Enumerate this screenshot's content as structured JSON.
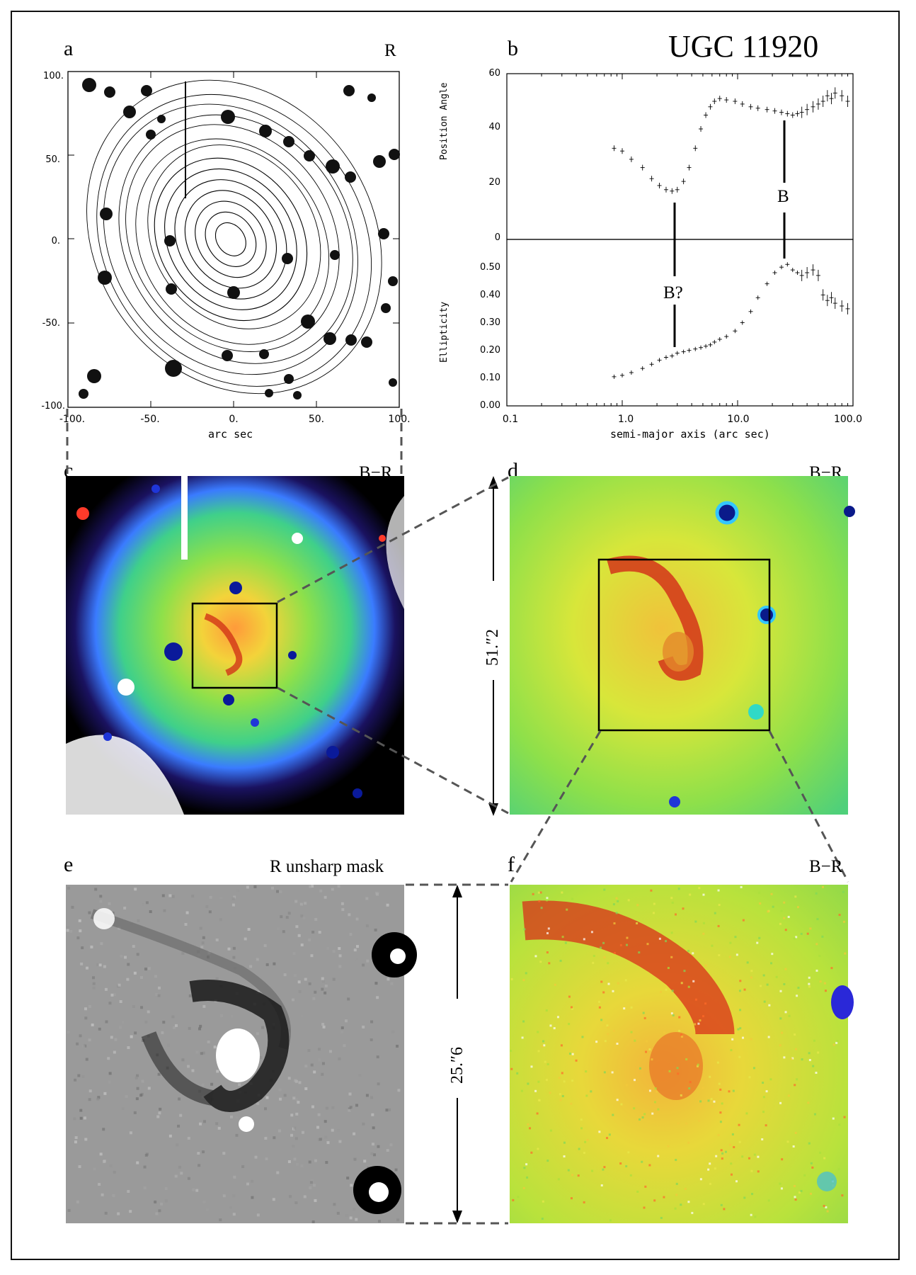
{
  "figure": {
    "title": "UGC 11920",
    "panels": {
      "a": {
        "letter": "a",
        "band": "R",
        "xlabel": "arc sec",
        "xticks": [
          "-100.",
          "-50.",
          "0.",
          "50.",
          "100."
        ],
        "yticks": [
          "100.",
          "50.",
          "0.",
          "-50.",
          "-100."
        ]
      },
      "b": {
        "letter": "b",
        "xlabel": "semi-major axis (arc sec)",
        "ylabel_top": "Position Angle",
        "ylabel_bottom": "Ellipticity",
        "xticks": [
          "0.1",
          "1.0",
          "10.0",
          "100.0"
        ],
        "yticks_top": [
          "60",
          "40",
          "20",
          "0"
        ],
        "yticks_bottom": [
          "0.50",
          "0.40",
          "0.30",
          "0.20",
          "0.10",
          "0.00"
        ],
        "annotation_b": "B",
        "annotation_bq": "B?"
      },
      "c": {
        "letter": "c",
        "band": "B−R"
      },
      "d": {
        "letter": "d",
        "band": "B−R",
        "scale": "51.″2"
      },
      "e": {
        "letter": "e",
        "band": "R unsharp mask",
        "scale": "25.″6"
      },
      "f": {
        "letter": "f",
        "band": "B−R"
      }
    }
  },
  "chart_data": [
    {
      "type": "scatter",
      "name_panel": "b-top",
      "xlabel": "semi-major axis (arc sec)",
      "ylabel": "Position Angle",
      "xscale": "log",
      "xlim": [
        0.1,
        100
      ],
      "ylim": [
        0,
        60
      ],
      "x": [
        0.85,
        1.0,
        1.2,
        1.5,
        1.8,
        2.1,
        2.4,
        2.7,
        3.0,
        3.4,
        3.8,
        4.3,
        4.8,
        5.3,
        5.8,
        6.3,
        7.0,
        8.0,
        9.5,
        11,
        13,
        15,
        18,
        21,
        24,
        27,
        30,
        33,
        36,
        40,
        45,
        50,
        55,
        60,
        65,
        70,
        80,
        90
      ],
      "y": [
        33,
        32,
        29,
        26,
        22,
        19.5,
        18,
        17.5,
        18,
        21,
        26,
        33,
        40,
        45,
        48,
        50,
        51,
        50.5,
        50,
        49,
        48,
        47.5,
        47,
        46.5,
        46,
        45.5,
        45,
        45.5,
        46,
        47,
        48,
        49,
        50,
        52,
        51,
        53,
        52,
        50
      ]
    },
    {
      "type": "scatter",
      "name_panel": "b-bottom",
      "xlabel": "semi-major axis (arc sec)",
      "ylabel": "Ellipticity",
      "xscale": "log",
      "xlim": [
        0.1,
        100
      ],
      "ylim": [
        0,
        0.6
      ],
      "x": [
        0.85,
        1.0,
        1.2,
        1.5,
        1.8,
        2.1,
        2.4,
        2.7,
        3.0,
        3.4,
        3.8,
        4.3,
        4.8,
        5.3,
        5.8,
        6.3,
        7.0,
        8.0,
        9.5,
        11,
        13,
        15,
        18,
        21,
        24,
        27,
        30,
        33,
        36,
        40,
        45,
        50,
        55,
        60,
        65,
        70,
        80,
        90
      ],
      "y": [
        0.105,
        0.11,
        0.12,
        0.135,
        0.15,
        0.165,
        0.175,
        0.18,
        0.19,
        0.195,
        0.2,
        0.205,
        0.21,
        0.215,
        0.22,
        0.23,
        0.24,
        0.25,
        0.27,
        0.3,
        0.34,
        0.39,
        0.44,
        0.48,
        0.5,
        0.51,
        0.49,
        0.48,
        0.47,
        0.48,
        0.49,
        0.47,
        0.4,
        0.38,
        0.39,
        0.37,
        0.36,
        0.35
      ]
    }
  ]
}
